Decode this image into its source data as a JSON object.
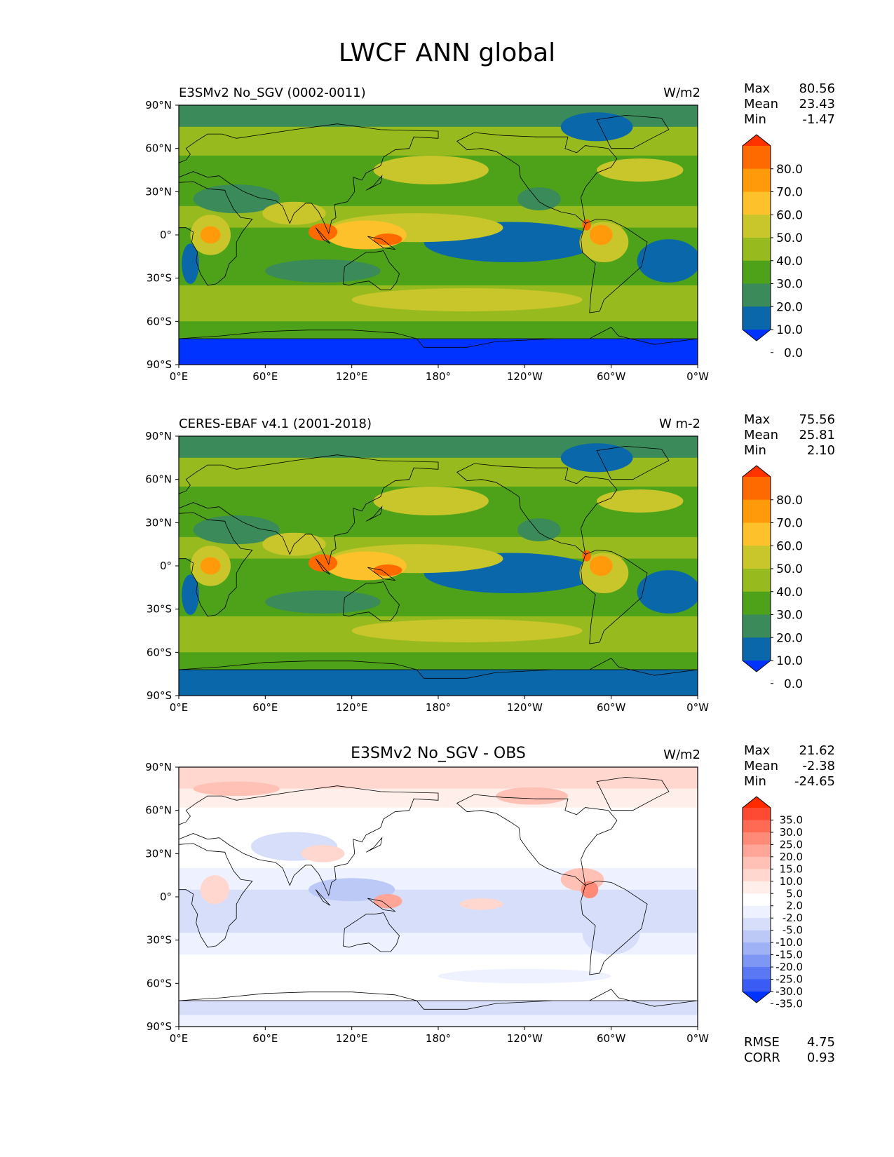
{
  "title": "LWCF ANN global",
  "axes": {
    "lat_ticks": [
      "90°N",
      "60°N",
      "30°N",
      "0°",
      "30°S",
      "60°S",
      "90°S"
    ],
    "lon_ticks": [
      "0°E",
      "60°E",
      "120°E",
      "180°",
      "120°W",
      "60°W",
      "0°W"
    ]
  },
  "panels": [
    {
      "id": "test",
      "title": "E3SMv2 No_SGV (0002-0011)",
      "title_position": "left",
      "units": "W/m2",
      "stats": {
        "max_label": "Max",
        "max": "80.56",
        "mean_label": "Mean",
        "mean": "23.43",
        "min_label": "Min",
        "min": "-1.47"
      },
      "colorbar": {
        "labels": [
          "80.0",
          "70.0",
          "60.0",
          "50.0",
          "40.0",
          "30.0",
          "20.0",
          "10.0",
          "0.0"
        ],
        "colors": [
          "#ff3300",
          "#ff6a00",
          "#ff9a0a",
          "#fdc22b",
          "#c9c62b",
          "#97bb1f",
          "#4ea219",
          "#3a8a5a",
          "#0a67a9",
          "#0033ff"
        ]
      }
    },
    {
      "id": "reference",
      "title": "CERES-EBAF v4.1 (2001-2018)",
      "title_position": "left",
      "units": "W m-2",
      "stats": {
        "max_label": "Max",
        "max": "75.56",
        "mean_label": "Mean",
        "mean": "25.81",
        "min_label": "Min",
        "min": "2.10"
      },
      "colorbar": {
        "labels": [
          "80.0",
          "70.0",
          "60.0",
          "50.0",
          "40.0",
          "30.0",
          "20.0",
          "10.0",
          "0.0"
        ],
        "colors": [
          "#ff3300",
          "#ff6a00",
          "#ff9a0a",
          "#fdc22b",
          "#c9c62b",
          "#97bb1f",
          "#4ea219",
          "#3a8a5a",
          "#0a67a9",
          "#0033ff"
        ]
      }
    },
    {
      "id": "diff",
      "title": "E3SMv2 No_SGV - OBS",
      "title_position": "center",
      "units": "W/m2",
      "stats": {
        "max_label": "Max",
        "max": "21.62",
        "mean_label": "Mean",
        "mean": "-2.38",
        "min_label": "Min",
        "min": "-24.65"
      },
      "colorbar": {
        "labels": [
          "35.0",
          "30.0",
          "25.0",
          "20.0",
          "15.0",
          "10.0",
          "5.0",
          "2.0",
          "-2.0",
          "-5.0",
          "-10.0",
          "-15.0",
          "-20.0",
          "-25.0",
          "-30.0",
          "-35.0"
        ],
        "colors": [
          "#ff2a00",
          "#ff4a33",
          "#ff6a55",
          "#ff8a77",
          "#ffa698",
          "#ffc0b5",
          "#ffd7cf",
          "#ffeeea",
          "#ffffff",
          "#eef1ff",
          "#d7defa",
          "#bcc9f7",
          "#9fb2f5",
          "#7f97f4",
          "#5a78f3",
          "#3a5cf5",
          "#0033ff"
        ]
      },
      "error_stats": {
        "rmse_label": "RMSE",
        "rmse": "4.75",
        "corr_label": "CORR",
        "corr": "0.93"
      }
    }
  ],
  "chart_data": [
    {
      "type": "heatmap",
      "title": "E3SMv2 No_SGV (0002-0011)",
      "units": "W/m2",
      "projection": "cylindrical equidistant",
      "xlim": [
        0,
        360
      ],
      "ylim": [
        -90,
        90
      ],
      "levels": [
        0,
        10,
        20,
        30,
        40,
        50,
        60,
        70,
        80
      ],
      "extend": "both",
      "stats": {
        "max": 80.56,
        "mean": 23.43,
        "min": -1.47
      }
    },
    {
      "type": "heatmap",
      "title": "CERES-EBAF v4.1 (2001-2018)",
      "units": "W m-2",
      "projection": "cylindrical equidistant",
      "xlim": [
        0,
        360
      ],
      "ylim": [
        -90,
        90
      ],
      "levels": [
        0,
        10,
        20,
        30,
        40,
        50,
        60,
        70,
        80
      ],
      "extend": "both",
      "stats": {
        "max": 75.56,
        "mean": 25.81,
        "min": 2.1
      }
    },
    {
      "type": "heatmap",
      "title": "E3SMv2 No_SGV - OBS",
      "units": "W/m2",
      "projection": "cylindrical equidistant",
      "xlim": [
        0,
        360
      ],
      "ylim": [
        -90,
        90
      ],
      "levels": [
        -35,
        -30,
        -25,
        -20,
        -15,
        -10,
        -5,
        -2,
        2,
        5,
        10,
        15,
        20,
        25,
        30,
        35
      ],
      "extend": "both",
      "stats": {
        "max": 21.62,
        "mean": -2.38,
        "min": -24.65,
        "rmse": 4.75,
        "corr": 0.93
      }
    }
  ]
}
